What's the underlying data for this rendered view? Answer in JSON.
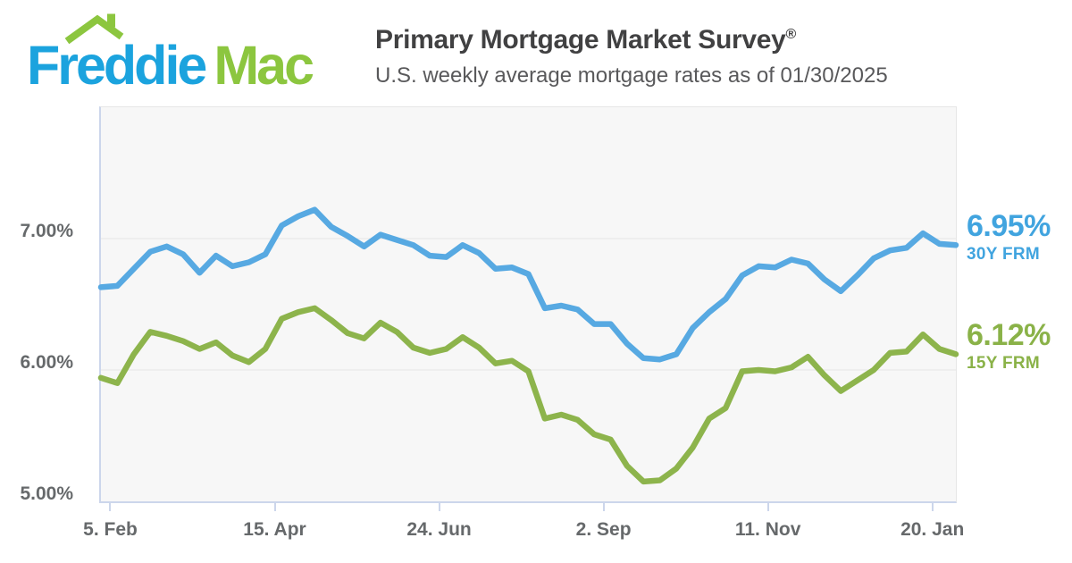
{
  "header": {
    "logo": {
      "word1": "Freddie",
      "word2": "Mac",
      "blue": "#1ba3de",
      "green": "#8cc63f"
    },
    "title": "Primary Mortgage Market Survey",
    "title_reg": "®",
    "subtitle": "U.S. weekly average mortgage rates as of 01/30/2025"
  },
  "chart_data": {
    "type": "line",
    "title": "Primary Mortgage Market Survey",
    "x_start_date": "2024-02-01",
    "x_end_date": "2025-01-30",
    "x_interval": "weekly",
    "ylim": [
      5.0,
      8.0
    ],
    "grid": "horizontal-only",
    "gridlines": [
      7.0,
      6.0
    ],
    "legend_position": "right-annotations",
    "plot_bg": "#f7f7f7",
    "grid_color": "#e4e4e4",
    "axis_color": "#ccd6eb",
    "tick_label_color": "#66696b",
    "y_ticks": [
      {
        "value": 7.0,
        "label": "7.00%"
      },
      {
        "value": 6.0,
        "label": "6.00%"
      },
      {
        "value": 5.0,
        "label": "5.00%"
      }
    ],
    "x_ticks": [
      {
        "label": "5. Feb",
        "week_index": 0.57
      },
      {
        "label": "15. Apr",
        "week_index": 10.57
      },
      {
        "label": "24. Jun",
        "week_index": 20.57
      },
      {
        "label": "2. Sep",
        "week_index": 30.57
      },
      {
        "label": "11. Nov",
        "week_index": 40.57
      },
      {
        "label": "20. Jan",
        "week_index": 50.57
      }
    ],
    "series": [
      {
        "name": "30Y FRM",
        "current": "6.95%",
        "color": "#57a9e2",
        "label_color": "#41a4df",
        "values": [
          6.63,
          6.64,
          6.77,
          6.9,
          6.94,
          6.88,
          6.74,
          6.87,
          6.79,
          6.82,
          6.88,
          7.1,
          7.17,
          7.22,
          7.09,
          7.02,
          6.94,
          7.03,
          6.99,
          6.95,
          6.87,
          6.86,
          6.95,
          6.89,
          6.77,
          6.78,
          6.73,
          6.47,
          6.49,
          6.46,
          6.35,
          6.35,
          6.2,
          6.09,
          6.08,
          6.12,
          6.32,
          6.44,
          6.54,
          6.72,
          6.79,
          6.78,
          6.84,
          6.81,
          6.69,
          6.6,
          6.72,
          6.85,
          6.91,
          6.93,
          7.04,
          6.96,
          6.95
        ]
      },
      {
        "name": "15Y FRM",
        "current": "6.12%",
        "color": "#8db44c",
        "label_color": "#8ab248",
        "values": [
          5.94,
          5.9,
          6.12,
          6.29,
          6.26,
          6.22,
          6.16,
          6.21,
          6.11,
          6.06,
          6.16,
          6.39,
          6.44,
          6.47,
          6.38,
          6.28,
          6.24,
          6.36,
          6.29,
          6.17,
          6.13,
          6.16,
          6.25,
          6.17,
          6.05,
          6.07,
          5.99,
          5.63,
          5.66,
          5.62,
          5.51,
          5.47,
          5.27,
          5.15,
          5.16,
          5.25,
          5.41,
          5.63,
          5.71,
          5.99,
          6.0,
          5.99,
          6.02,
          6.1,
          5.96,
          5.84,
          5.92,
          6.0,
          6.13,
          6.14,
          6.27,
          6.16,
          6.12
        ]
      }
    ]
  }
}
